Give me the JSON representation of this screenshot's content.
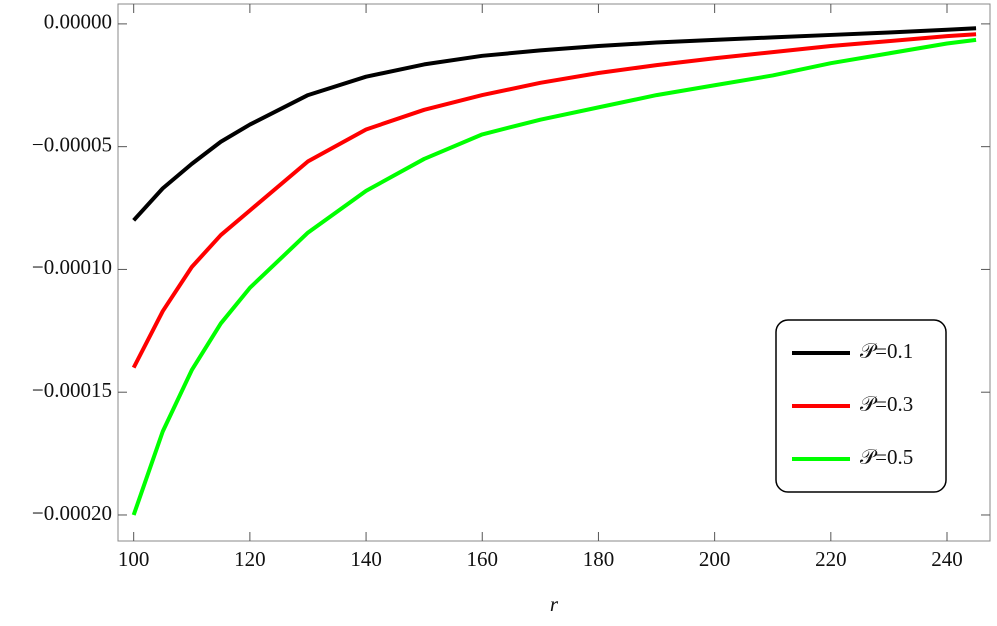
{
  "chart_data": {
    "type": "line",
    "x_label": "r",
    "x": [
      100,
      105,
      110,
      115,
      120,
      130,
      140,
      150,
      160,
      170,
      180,
      190,
      200,
      210,
      220,
      230,
      240,
      245
    ],
    "series": [
      {
        "name": "𝒫=0.1",
        "color": "#000000",
        "values": [
          -8e-05,
          -6.7e-05,
          -5.7e-05,
          -4.8e-05,
          -4.1e-05,
          -2.9e-05,
          -2.15e-05,
          -1.65e-05,
          -1.3e-05,
          -1.08e-05,
          -9e-06,
          -7.6e-06,
          -6.5e-06,
          -5.5e-06,
          -4.5e-06,
          -3.5e-06,
          -2.4e-06,
          -1.8e-06
        ]
      },
      {
        "name": "𝒫=0.3",
        "color": "#ff0000",
        "values": [
          -0.00014,
          -0.000117,
          -9.9e-05,
          -8.6e-05,
          -7.6e-05,
          -5.6e-05,
          -4.3e-05,
          -3.5e-05,
          -2.9e-05,
          -2.4e-05,
          -2e-05,
          -1.68e-05,
          -1.4e-05,
          -1.15e-05,
          -9e-06,
          -7e-06,
          -5e-06,
          -4.2e-06
        ]
      },
      {
        "name": "𝒫=0.5",
        "color": "#00ff00",
        "values": [
          -0.0002,
          -0.000166,
          -0.000141,
          -0.000122,
          -0.0001075,
          -8.5e-05,
          -6.8e-05,
          -5.5e-05,
          -4.5e-05,
          -3.9e-05,
          -3.4e-05,
          -2.9e-05,
          -2.5e-05,
          -2.1e-05,
          -1.6e-05,
          -1.2e-05,
          -8e-06,
          -6.5e-06
        ]
      }
    ],
    "xlim": [
      97.3,
      247.4
    ],
    "ylim": [
      -0.0002106,
      8.1e-06
    ],
    "xticks": [
      100,
      120,
      140,
      160,
      180,
      200,
      220,
      240
    ],
    "yticks": [
      {
        "value": 0,
        "label": "0.00000"
      },
      {
        "value": -5e-05,
        "label": "−0.00005"
      },
      {
        "value": -0.0001,
        "label": "−0.00010"
      },
      {
        "value": -0.00015,
        "label": "−0.00015"
      },
      {
        "value": -0.0002,
        "label": "−0.00020"
      }
    ],
    "legend_position": "lower right"
  }
}
